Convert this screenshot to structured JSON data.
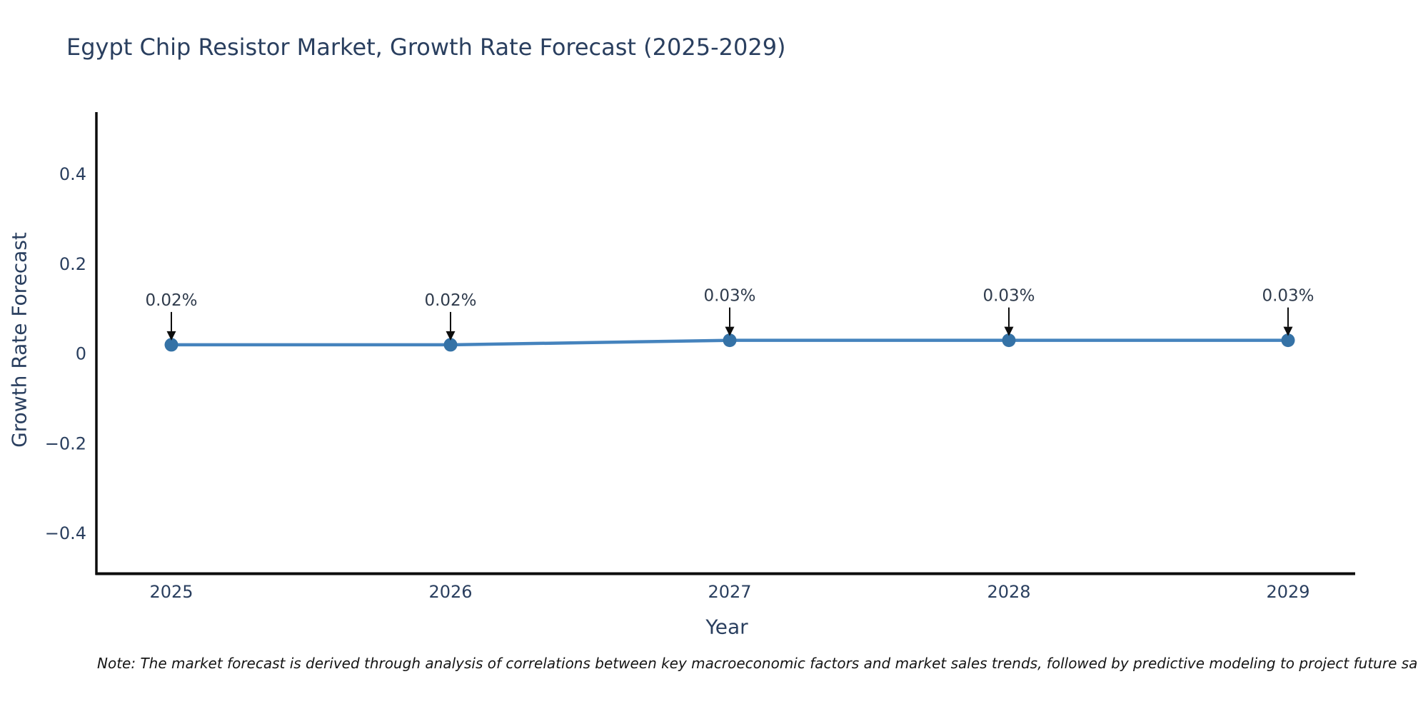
{
  "chart_data": {
    "type": "line",
    "title": "Egypt Chip Resistor Market, Growth Rate Forecast (2025-2029)",
    "xlabel": "Year",
    "ylabel": "Growth Rate Forecast",
    "categories": [
      "2025",
      "2026",
      "2027",
      "2028",
      "2029"
    ],
    "values": [
      0.02,
      0.02,
      0.03,
      0.03,
      0.03
    ],
    "point_labels": [
      "0.02%",
      "0.02%",
      "0.03%",
      "0.03%",
      "0.03%"
    ],
    "y_ticks": [
      -0.4,
      -0.2,
      0,
      0.2,
      0.4
    ],
    "ylim": [
      -0.49,
      0.54
    ],
    "grid": false,
    "legend": "none",
    "line_color": "#4583bd",
    "marker_color": "#3572a6",
    "axis_color": "#0d0d0d",
    "text_color": "#2a3f5f",
    "annotation_color": "#2f3b4c"
  },
  "footnote": {
    "text": "Note: The market forecast is derived through analysis of correlations between key macroeconomic factors and market sales trends, followed by predictive modeling to project future sa"
  }
}
